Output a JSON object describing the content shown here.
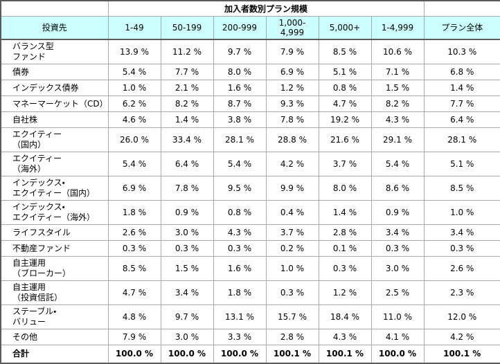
{
  "colors": {
    "header_bg": "#ccffff",
    "outer_border": "#5a5a5a",
    "grid_line": "#a9a9a9",
    "text": "#000000"
  },
  "chart_data": {
    "type": "table",
    "title": "加入者数別プラン規模",
    "row_header_label": "投資先",
    "unit": "%",
    "columns": [
      "1-49",
      "50-199",
      "200-999",
      "1,000-\n4,999",
      "5,000+",
      "1-4,999",
      "プラン全体"
    ],
    "rows": [
      {
        "label": "バランス型\nファンド",
        "values": [
          13.9,
          11.2,
          9.7,
          7.9,
          8.5,
          10.6,
          10.3
        ]
      },
      {
        "label": "債券",
        "values": [
          5.4,
          7.7,
          8.0,
          6.9,
          5.1,
          7.1,
          6.8
        ]
      },
      {
        "label": "インデックス債券",
        "values": [
          1.0,
          2.1,
          1.6,
          1.2,
          0.8,
          1.5,
          1.4
        ]
      },
      {
        "label": "マネーマーケット（CD）",
        "values": [
          6.2,
          8.2,
          8.7,
          9.3,
          4.7,
          8.2,
          7.7
        ]
      },
      {
        "label": "自社株",
        "values": [
          4.6,
          1.4,
          3.8,
          7.8,
          19.2,
          4.3,
          6.4
        ]
      },
      {
        "label": "エクイティー\n（国内）",
        "values": [
          26.0,
          33.4,
          28.1,
          28.8,
          21.6,
          29.1,
          28.1
        ]
      },
      {
        "label": "エクイティー\n（海外）",
        "values": [
          5.4,
          6.4,
          5.4,
          4.2,
          3.7,
          5.4,
          5.1
        ]
      },
      {
        "label": "インデックス・\nエクイティー（国内）",
        "values": [
          6.9,
          7.8,
          9.5,
          9.9,
          8.0,
          8.6,
          8.5
        ]
      },
      {
        "label": "インデックス・\nエクイティー（海外）",
        "values": [
          1.8,
          0.9,
          0.8,
          0.4,
          1.4,
          0.9,
          1.0
        ]
      },
      {
        "label": "ライフスタイル",
        "values": [
          2.6,
          3.0,
          4.3,
          3.7,
          2.8,
          3.4,
          3.4
        ]
      },
      {
        "label": "不動産ファンド",
        "values": [
          0.3,
          0.3,
          0.3,
          0.2,
          0.1,
          0.3,
          0.3
        ]
      },
      {
        "label": "自主運用\n（ブローカー）",
        "values": [
          8.5,
          1.5,
          1.6,
          1.0,
          0.3,
          3.0,
          2.6
        ]
      },
      {
        "label": "自主運用\n（投資信託）",
        "values": [
          4.7,
          3.4,
          1.8,
          0.3,
          1.2,
          2.5,
          2.3
        ]
      },
      {
        "label": "ステーブル・\nバリュー",
        "values": [
          4.8,
          9.7,
          13.1,
          15.7,
          18.4,
          11.0,
          12.0
        ]
      },
      {
        "label": "その他",
        "values": [
          7.9,
          3.0,
          3.3,
          2.8,
          4.3,
          4.1,
          4.2
        ]
      },
      {
        "label": "合計",
        "total": true,
        "values": [
          100.0,
          100.0,
          100.0,
          100.1,
          100.1,
          100.0,
          100.1
        ]
      }
    ]
  }
}
